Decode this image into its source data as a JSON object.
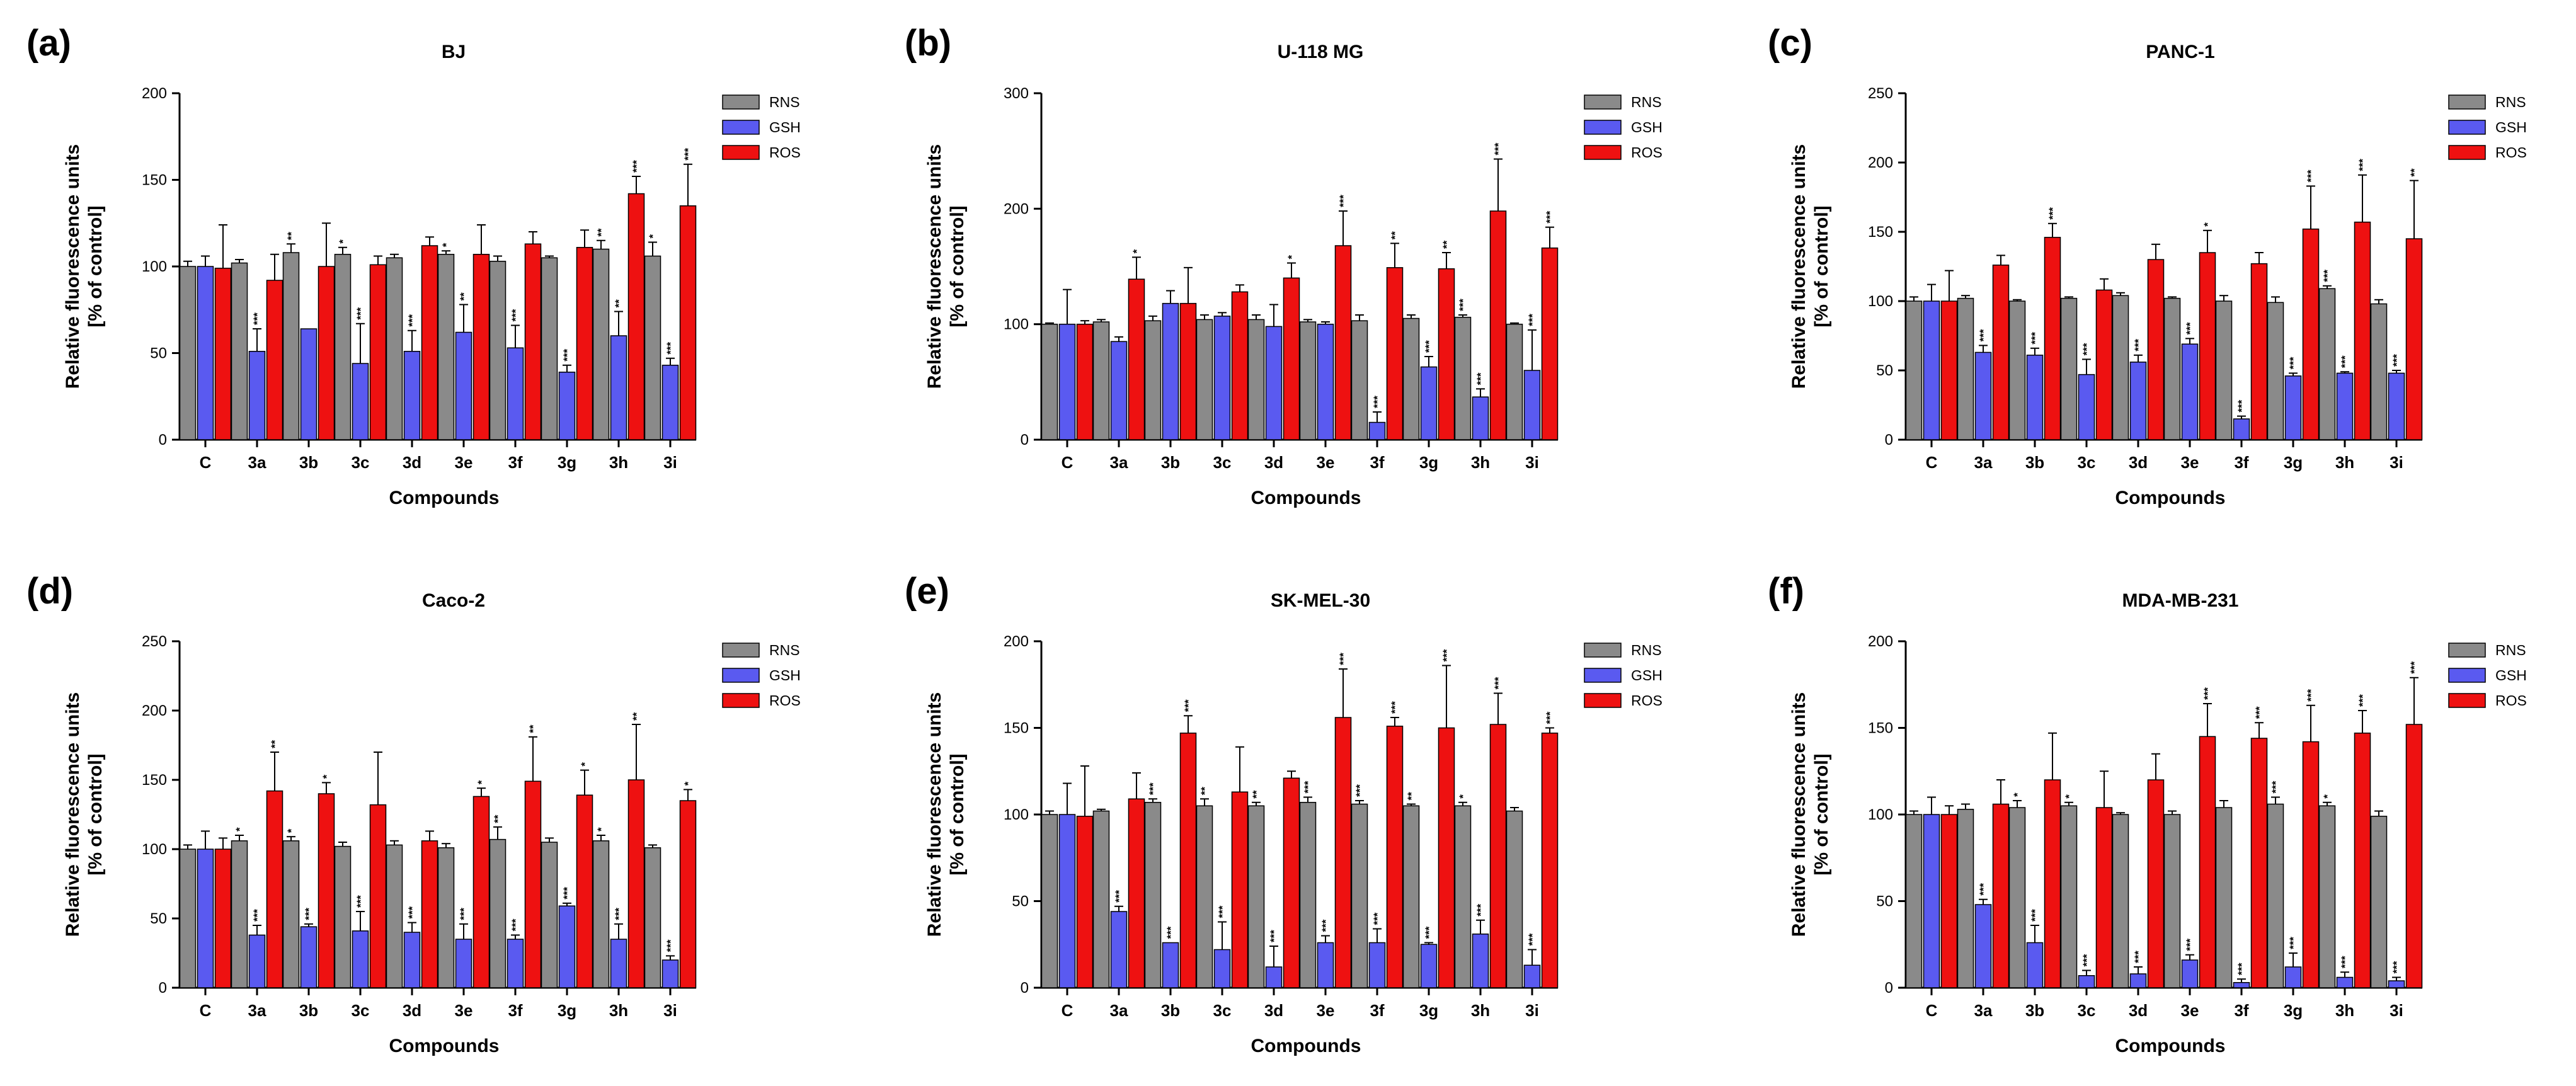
{
  "colors": {
    "RNS": "#8a8a8a",
    "GSH": "#5a5af0",
    "ROS": "#ee1111"
  },
  "chart_data": [
    {
      "type": "bar",
      "panel": "(a)",
      "title": "BJ",
      "xlabel": "Compounds",
      "ylabel": [
        "Relative fluorescence units",
        "[% of control]"
      ],
      "ylim": [
        0,
        200
      ],
      "yticks": [
        0,
        50,
        100,
        150,
        200
      ],
      "categories": [
        "C",
        "3a",
        "3b",
        "3c",
        "3d",
        "3e",
        "3f",
        "3g",
        "3h",
        "3i"
      ],
      "series": [
        {
          "name": "RNS",
          "values": [
            100,
            102,
            108,
            107,
            105,
            107,
            103,
            105,
            110,
            106
          ],
          "errors": [
            3,
            2,
            5,
            4,
            2,
            2,
            3,
            1,
            5,
            8
          ],
          "stars": [
            "",
            "",
            "**",
            "*",
            "",
            "*",
            "",
            "",
            "**",
            "*"
          ]
        },
        {
          "name": "GSH",
          "values": [
            100,
            51,
            64,
            44,
            51,
            62,
            53,
            39,
            60,
            43
          ],
          "errors": [
            6,
            13,
            0,
            23,
            12,
            16,
            13,
            4,
            14,
            4
          ],
          "stars": [
            "",
            "***",
            "",
            "***",
            "***",
            "**",
            "***",
            "***",
            "**",
            "***"
          ]
        },
        {
          "name": "ROS",
          "values": [
            99,
            92,
            100,
            101,
            112,
            107,
            113,
            111,
            142,
            135
          ],
          "errors": [
            25,
            15,
            25,
            5,
            5,
            17,
            7,
            10,
            10,
            24
          ],
          "stars": [
            "",
            "",
            "",
            "",
            "",
            "",
            "",
            "",
            "***",
            "***"
          ]
        }
      ]
    },
    {
      "type": "bar",
      "panel": "(b)",
      "title": "U-118 MG",
      "xlabel": "Compounds",
      "ylabel": [
        "Relative fluorescence units",
        "[% of control]"
      ],
      "ylim": [
        0,
        300
      ],
      "yticks": [
        0,
        100,
        200,
        300
      ],
      "categories": [
        "C",
        "3a",
        "3b",
        "3c",
        "3d",
        "3e",
        "3f",
        "3g",
        "3h",
        "3i"
      ],
      "series": [
        {
          "name": "RNS",
          "values": [
            100,
            102,
            103,
            104,
            104,
            102,
            103,
            105,
            106,
            100
          ],
          "errors": [
            1,
            2,
            4,
            4,
            4,
            2,
            5,
            3,
            2,
            1
          ],
          "stars": [
            "",
            "",
            "",
            "",
            "",
            "",
            "",
            "",
            "***",
            ""
          ]
        },
        {
          "name": "GSH",
          "values": [
            100,
            85,
            118,
            107,
            98,
            100,
            15,
            63,
            37,
            60
          ],
          "errors": [
            30,
            4,
            11,
            3,
            19,
            2,
            9,
            9,
            7,
            35
          ],
          "stars": [
            "",
            "",
            "",
            "",
            "",
            "",
            "***",
            "***",
            "***",
            "***"
          ]
        },
        {
          "name": "ROS",
          "values": [
            100,
            139,
            118,
            128,
            140,
            168,
            149,
            148,
            198,
            166
          ],
          "errors": [
            3,
            19,
            31,
            6,
            13,
            30,
            21,
            14,
            45,
            18
          ],
          "stars": [
            "",
            "*",
            "",
            "",
            "*",
            "***",
            "**",
            "**",
            "***",
            "***"
          ]
        }
      ]
    },
    {
      "type": "bar",
      "panel": "(c)",
      "title": "PANC-1",
      "xlabel": "Compounds",
      "ylabel": [
        "Relative fluorescence units",
        "[% of control]"
      ],
      "ylim": [
        0,
        250
      ],
      "yticks": [
        0,
        50,
        100,
        150,
        200,
        250
      ],
      "categories": [
        "C",
        "3a",
        "3b",
        "3c",
        "3d",
        "3e",
        "3f",
        "3g",
        "3h",
        "3i"
      ],
      "series": [
        {
          "name": "RNS",
          "values": [
            100,
            102,
            100,
            102,
            104,
            102,
            100,
            99,
            109,
            98
          ],
          "errors": [
            3,
            2,
            1,
            1,
            2,
            1,
            4,
            4,
            2,
            3
          ],
          "stars": [
            "",
            "",
            "",
            "",
            "",
            "",
            "",
            "",
            "***",
            ""
          ]
        },
        {
          "name": "GSH",
          "values": [
            100,
            63,
            61,
            47,
            56,
            69,
            15,
            46,
            48,
            48
          ],
          "errors": [
            12,
            5,
            5,
            11,
            5,
            4,
            2,
            2,
            1,
            2
          ],
          "stars": [
            "",
            "***",
            "***",
            "***",
            "***",
            "***",
            "***",
            "***",
            "***",
            "***"
          ]
        },
        {
          "name": "ROS",
          "values": [
            100,
            126,
            146,
            108,
            130,
            135,
            127,
            152,
            157,
            145
          ],
          "errors": [
            22,
            7,
            10,
            8,
            11,
            16,
            8,
            31,
            34,
            42
          ],
          "stars": [
            "",
            "",
            "***",
            "",
            "",
            "*",
            "",
            "***",
            "***",
            "**"
          ]
        }
      ]
    },
    {
      "type": "bar",
      "panel": "(d)",
      "title": "Caco-2",
      "xlabel": "Compounds",
      "ylabel": [
        "Relative fluorescence units",
        "[% of control]"
      ],
      "ylim": [
        0,
        250
      ],
      "yticks": [
        0,
        50,
        100,
        150,
        200,
        250
      ],
      "categories": [
        "C",
        "3a",
        "3b",
        "3c",
        "3d",
        "3e",
        "3f",
        "3g",
        "3h",
        "3i"
      ],
      "series": [
        {
          "name": "RNS",
          "values": [
            100,
            106,
            106,
            102,
            103,
            101,
            107,
            105,
            106,
            101
          ],
          "errors": [
            3,
            4,
            3,
            3,
            3,
            3,
            9,
            3,
            4,
            2
          ],
          "stars": [
            "",
            "*",
            "*",
            "",
            "",
            "",
            "**",
            "",
            "*",
            ""
          ]
        },
        {
          "name": "GSH",
          "values": [
            100,
            38,
            44,
            41,
            40,
            35,
            35,
            59,
            35,
            20
          ],
          "errors": [
            13,
            7,
            2,
            14,
            7,
            11,
            3,
            2,
            11,
            3
          ],
          "stars": [
            "",
            "***",
            "***",
            "***",
            "***",
            "***",
            "***",
            "***",
            "***",
            "***"
          ]
        },
        {
          "name": "ROS",
          "values": [
            100,
            142,
            140,
            132,
            106,
            138,
            149,
            139,
            150,
            135
          ],
          "errors": [
            8,
            28,
            8,
            38,
            7,
            6,
            32,
            18,
            40,
            8
          ],
          "stars": [
            "",
            "**",
            "*",
            "",
            "",
            "*",
            "**",
            "*",
            "**",
            "*"
          ]
        }
      ]
    },
    {
      "type": "bar",
      "panel": "(e)",
      "title": "SK-MEL-30",
      "xlabel": "Compounds",
      "ylabel": [
        "Relative fluorescence units",
        "[% of control]"
      ],
      "ylim": [
        0,
        200
      ],
      "yticks": [
        0,
        50,
        100,
        150,
        200
      ],
      "categories": [
        "C",
        "3a",
        "3b",
        "3c",
        "3d",
        "3e",
        "3f",
        "3g",
        "3h",
        "3i"
      ],
      "series": [
        {
          "name": "RNS",
          "values": [
            100,
            102,
            107,
            105,
            105,
            107,
            106,
            105,
            105,
            102
          ],
          "errors": [
            2,
            1,
            2,
            4,
            2,
            3,
            2,
            1,
            2,
            2
          ],
          "stars": [
            "",
            "",
            "***",
            "**",
            "**",
            "***",
            "***",
            "**",
            "*",
            ""
          ]
        },
        {
          "name": "GSH",
          "values": [
            100,
            44,
            26,
            22,
            12,
            26,
            26,
            25,
            31,
            13
          ],
          "errors": [
            18,
            3,
            0,
            16,
            12,
            4,
            8,
            1,
            8,
            9
          ],
          "stars": [
            "",
            "***",
            "***",
            "***",
            "***",
            "***",
            "***",
            "***",
            "***",
            "***"
          ]
        },
        {
          "name": "ROS",
          "values": [
            99,
            109,
            147,
            113,
            121,
            156,
            151,
            150,
            152,
            147
          ],
          "errors": [
            29,
            15,
            10,
            26,
            4,
            28,
            5,
            36,
            18,
            3
          ],
          "stars": [
            "",
            "",
            "***",
            "",
            "",
            "***",
            "***",
            "***",
            "***",
            "***"
          ]
        }
      ]
    },
    {
      "type": "bar",
      "panel": "(f)",
      "title": "MDA-MB-231",
      "xlabel": "Compounds",
      "ylabel": [
        "Relative fluorescence units",
        "[% of control]"
      ],
      "ylim": [
        0,
        200
      ],
      "yticks": [
        0,
        50,
        100,
        150,
        200
      ],
      "categories": [
        "C",
        "3a",
        "3b",
        "3c",
        "3d",
        "3e",
        "3f",
        "3g",
        "3h",
        "3i"
      ],
      "series": [
        {
          "name": "RNS",
          "values": [
            100,
            103,
            104,
            105,
            100,
            100,
            104,
            106,
            105,
            99
          ],
          "errors": [
            2,
            3,
            4,
            2,
            1,
            2,
            4,
            4,
            2,
            3
          ],
          "stars": [
            "",
            "",
            "*",
            "*",
            "",
            "",
            "",
            "***",
            "*",
            ""
          ]
        },
        {
          "name": "GSH",
          "values": [
            100,
            48,
            26,
            7,
            8,
            16,
            3,
            12,
            6,
            4
          ],
          "errors": [
            10,
            3,
            10,
            3,
            4,
            3,
            2,
            8,
            3,
            2
          ],
          "stars": [
            "",
            "***",
            "***",
            "***",
            "***",
            "***",
            "***",
            "***",
            "***",
            "***"
          ]
        },
        {
          "name": "ROS",
          "values": [
            100,
            106,
            120,
            104,
            120,
            145,
            144,
            142,
            147,
            152
          ],
          "errors": [
            5,
            14,
            27,
            21,
            15,
            19,
            9,
            21,
            13,
            27
          ],
          "stars": [
            "",
            "",
            "",
            "",
            "",
            "***",
            "***",
            "***",
            "***",
            "***"
          ]
        }
      ]
    }
  ]
}
